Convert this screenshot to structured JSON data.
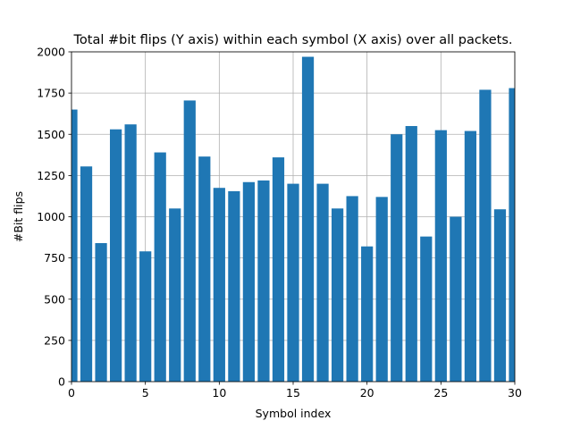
{
  "chart_data": {
    "type": "bar",
    "title": "Total #bit flips (Y axis) within each symbol (X axis) over all packets.",
    "xlabel": "Symbol index",
    "ylabel": "#Bit flips",
    "xlim": [
      0,
      30
    ],
    "ylim": [
      0,
      2000
    ],
    "xticks": [
      0,
      5,
      10,
      15,
      20,
      25,
      30
    ],
    "yticks": [
      0,
      250,
      500,
      750,
      1000,
      1250,
      1500,
      1750,
      2000
    ],
    "grid": true,
    "bar_color": "#1f77b4",
    "bar_width": 0.8,
    "x": [
      0,
      1,
      2,
      3,
      4,
      5,
      6,
      7,
      8,
      9,
      10,
      11,
      12,
      13,
      14,
      15,
      16,
      17,
      18,
      19,
      20,
      21,
      22,
      23,
      24,
      25,
      26,
      27,
      28,
      29,
      30
    ],
    "values": [
      1650,
      1305,
      840,
      1530,
      1560,
      790,
      1390,
      1050,
      1705,
      1365,
      1175,
      1155,
      1210,
      1220,
      1360,
      1200,
      1970,
      1200,
      1050,
      1125,
      820,
      1120,
      1500,
      1550,
      880,
      1525,
      1000,
      1520,
      1770,
      1045,
      1780
    ]
  }
}
